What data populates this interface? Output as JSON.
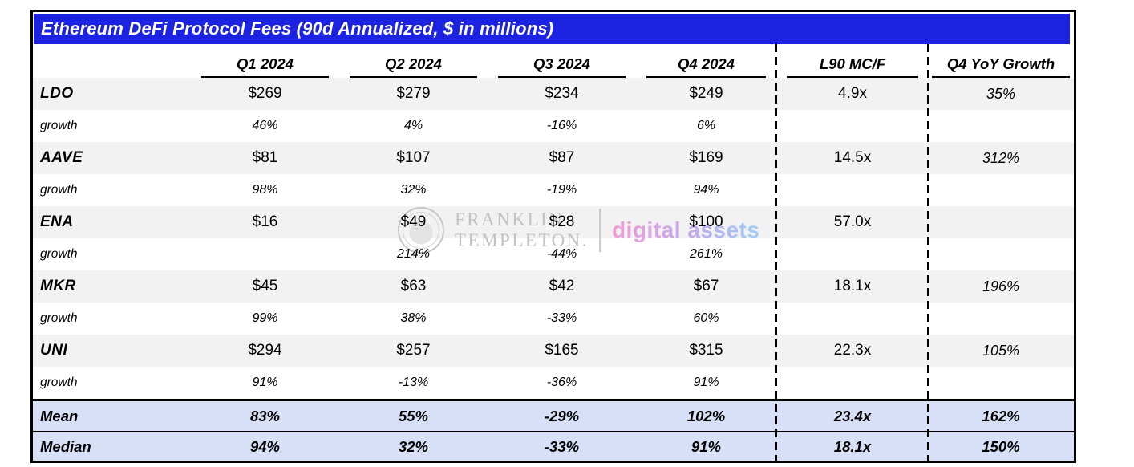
{
  "title": "Ethereum DeFi Protocol Fees (90d Annualized, $ in millions)",
  "columns": [
    "Q1 2024",
    "Q2 2024",
    "Q3 2024",
    "Q4 2024",
    "L90 MC/F",
    "Q4 YoY Growth"
  ],
  "rows": [
    {
      "type": "protocol",
      "label": "LDO",
      "values": [
        "$269",
        "$279",
        "$234",
        "$249"
      ],
      "mcf": "4.9x",
      "yoy": "35%"
    },
    {
      "type": "growth",
      "label": "growth",
      "values": [
        "46%",
        "4%",
        "-16%",
        "6%"
      ],
      "mcf": "",
      "yoy": ""
    },
    {
      "type": "protocol",
      "label": "AAVE",
      "values": [
        "$81",
        "$107",
        "$87",
        "$169"
      ],
      "mcf": "14.5x",
      "yoy": "312%"
    },
    {
      "type": "growth",
      "label": "growth",
      "values": [
        "98%",
        "32%",
        "-19%",
        "94%"
      ],
      "mcf": "",
      "yoy": ""
    },
    {
      "type": "protocol",
      "label": "ENA",
      "values": [
        "$16",
        "$49",
        "$28",
        "$100"
      ],
      "mcf": "57.0x",
      "yoy": ""
    },
    {
      "type": "growth",
      "label": "growth",
      "values": [
        "",
        "214%",
        "-44%",
        "261%"
      ],
      "mcf": "",
      "yoy": ""
    },
    {
      "type": "protocol",
      "label": "MKR",
      "values": [
        "$45",
        "$63",
        "$42",
        "$67"
      ],
      "mcf": "18.1x",
      "yoy": "196%"
    },
    {
      "type": "growth",
      "label": "growth",
      "values": [
        "99%",
        "38%",
        "-33%",
        "60%"
      ],
      "mcf": "",
      "yoy": ""
    },
    {
      "type": "protocol",
      "label": "UNI",
      "values": [
        "$294",
        "$257",
        "$165",
        "$315"
      ],
      "mcf": "22.3x",
      "yoy": "105%"
    },
    {
      "type": "growth",
      "label": "growth",
      "values": [
        "91%",
        "-13%",
        "-36%",
        "91%"
      ],
      "mcf": "",
      "yoy": ""
    }
  ],
  "summary": [
    {
      "label": "Mean",
      "values": [
        "83%",
        "55%",
        "-29%",
        "102%"
      ],
      "mcf": "23.4x",
      "yoy": "162%"
    },
    {
      "label": "Median",
      "values": [
        "94%",
        "32%",
        "-33%",
        "91%"
      ],
      "mcf": "18.1x",
      "yoy": "150%"
    }
  ],
  "watermark": {
    "brand_line1": "FRANKLIN",
    "brand_line2": "TEMPLETON.",
    "tagline": "digital assets"
  },
  "colors": {
    "banner_blue": "#1b23e1",
    "protocol_row_bg": "#f2f2f2",
    "summary_row_bg": "#d8e0f8",
    "watermark_gray": "#c2c2c2",
    "tagline_gradient": [
      "#f09cd4",
      "#c0aaec",
      "#9fcdf2"
    ]
  }
}
